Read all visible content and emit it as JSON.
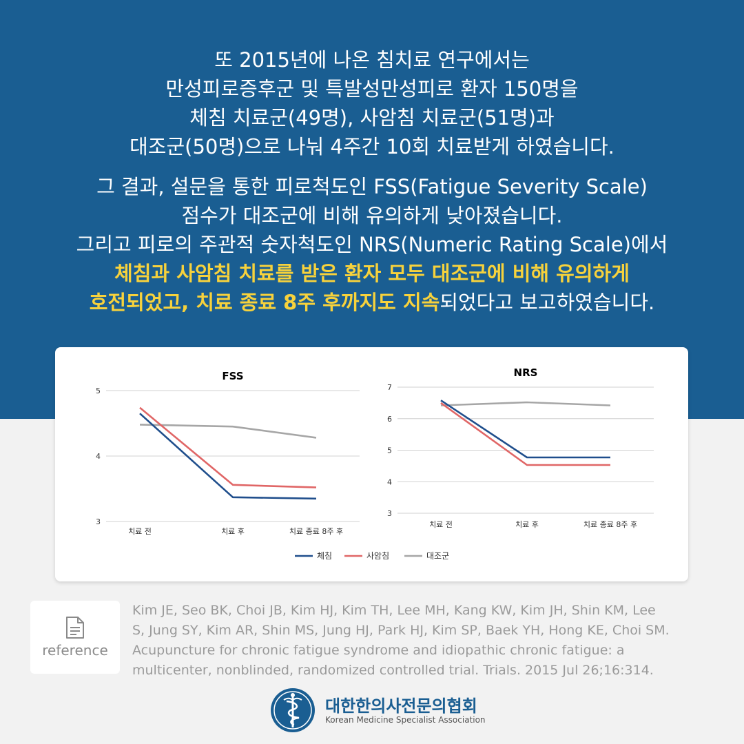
{
  "intro": {
    "para1": [
      "또 2015년에 나온 침치료 연구에서는",
      "만성피로증후군 및 특발성만성피로 환자 150명을",
      "체침 치료군(49명), 사암침 치료군(51명)과",
      "대조군(50명)으로 나눠 4주간 10회 치료받게 하였습니다."
    ],
    "para2": [
      "그 결과, 설문을 통한 피로척도인 FSS(Fatigue Severity Scale)",
      "점수가 대조군에 비해 유의하게 낮아졌습니다.",
      "그리고 피로의 주관적 숫자척도인 NRS(Numeric Rating Scale)에서"
    ],
    "highlight_line1": "체침과 사암침 치료를 받은 환자 모두 대조군에 비해 유의하게",
    "highlight_line2": "호전되었고, 치료 종료 8주 후까지도 지속",
    "tail_line2": "되었다고 보고하였습니다."
  },
  "chart_data": [
    {
      "type": "line",
      "title": "FSS",
      "categories": [
        "치료 전",
        "치료 후",
        "치료 종료 8주 후"
      ],
      "ylim": [
        3,
        5
      ],
      "yticks": [
        3,
        4,
        5
      ],
      "grid": true,
      "series": [
        {
          "name": "체침",
          "values": [
            4.65,
            3.37,
            3.35
          ]
        },
        {
          "name": "사암침",
          "values": [
            4.74,
            3.56,
            3.52
          ]
        },
        {
          "name": "대조군",
          "values": [
            4.48,
            4.45,
            4.28
          ]
        }
      ]
    },
    {
      "type": "line",
      "title": "NRS",
      "categories": [
        "치료 전",
        "치료 후",
        "치료 종료 8주 후"
      ],
      "ylim": [
        3,
        7
      ],
      "yticks": [
        3,
        4,
        5,
        6,
        7
      ],
      "grid": true,
      "series": [
        {
          "name": "체침",
          "values": [
            6.58,
            4.77,
            4.77
          ]
        },
        {
          "name": "사암침",
          "values": [
            6.5,
            4.53,
            4.53
          ]
        },
        {
          "name": "대조군",
          "values": [
            6.42,
            6.52,
            6.42
          ]
        }
      ]
    }
  ],
  "legend": {
    "placement": "bottom-center",
    "items": [
      {
        "name": "체침",
        "color": "#1f4e8c"
      },
      {
        "name": "사암침",
        "color": "#e06666"
      },
      {
        "name": "대조군",
        "color": "#a6a6a6"
      }
    ]
  },
  "reference": {
    "label": "reference",
    "icon": "document-icon",
    "citation_lines": [
      "Kim JE, Seo BK, Choi JB, Kim HJ, Kim TH, Lee MH, Kang KW, Kim JH, Shin KM, Lee",
      "S, Jung SY, Kim AR, Shin MS, Jung HJ, Park HJ, Kim SP, Baek YH, Hong KE, Choi SM.",
      "Acupuncture for chronic fatigue syndrome and idiopathic chronic fatigue: a",
      "multicenter, nonblinded, randomized controlled trial. Trials. 2015 Jul 26;16:314."
    ]
  },
  "footer": {
    "org_name": "대한한의사전문의협회",
    "org_name_en": "Korean Medicine Specialist Association",
    "logo_icon": "caduceus-emblem-icon"
  },
  "colors": {
    "band": "#1a5e92",
    "highlight": "#f7d23c"
  }
}
